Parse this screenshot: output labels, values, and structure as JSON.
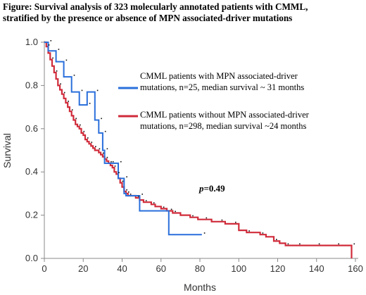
{
  "figure_title_line1": "Figure: Survival analysis of 323 molecularly annotated patients with CMML,",
  "figure_title_line2": "stratified by the presence or absence of MPN associated-driver mutations",
  "chart_data": {
    "type": "line",
    "title": "Figure: Survival analysis of 323 molecularly annotated patients with CMML, stratified by the presence or absence of MPN associated-driver mutations",
    "xlabel": "Months",
    "ylabel": "Survival",
    "xlim": [
      0,
      160
    ],
    "ylim": [
      0.0,
      1.0
    ],
    "x_ticks": [
      "0",
      "20",
      "40",
      "60",
      "80",
      "100",
      "120",
      "140",
      "160"
    ],
    "y_ticks": [
      "0.0",
      "0.2",
      "0.4",
      "0.6",
      "0.8",
      "1.0"
    ],
    "grid": false,
    "legend_position": "right",
    "annotation_italic": "p",
    "annotation_value": "=0.49",
    "series": [
      {
        "name_line1": "CMML patients with MPN associated-driver",
        "name_line2": "mutations, n=25,  median survival ~ 31 months",
        "color": "#2a6fdb",
        "x": [
          0,
          2,
          2,
          6,
          6,
          10,
          10,
          14,
          14,
          18,
          18,
          22,
          22,
          26,
          26,
          28,
          28,
          30,
          30,
          31,
          31,
          34,
          34,
          38,
          38,
          41,
          41,
          42,
          42,
          49,
          49,
          64,
          64,
          81
        ],
        "y": [
          1.0,
          1.0,
          0.96,
          0.96,
          0.91,
          0.91,
          0.84,
          0.84,
          0.77,
          0.77,
          0.71,
          0.71,
          0.77,
          0.77,
          0.64,
          0.64,
          0.58,
          0.58,
          0.5,
          0.5,
          0.44,
          0.44,
          0.44,
          0.44,
          0.37,
          0.37,
          0.3,
          0.3,
          0.29,
          0.29,
          0.22,
          0.22,
          0.11,
          0.11
        ]
      },
      {
        "name_line1": "CMML patients without MPN associated-driver",
        "name_line2": "mutations, n=298, median survival ~24 months",
        "color": "#d02b3a",
        "x": [
          0,
          1,
          2,
          3,
          4,
          5,
          6,
          7,
          8,
          9,
          10,
          11,
          12,
          13,
          14,
          15,
          16,
          17,
          18,
          19,
          20,
          21,
          22,
          23,
          24,
          25,
          26,
          27,
          28,
          29,
          30,
          31,
          32,
          33,
          34,
          35,
          36,
          37,
          38,
          39,
          40,
          41,
          42,
          43,
          45,
          47,
          49,
          51,
          53,
          55,
          57,
          60,
          63,
          66,
          70,
          75,
          79,
          82,
          86,
          90,
          93,
          97,
          100,
          104,
          108,
          111,
          114,
          118,
          121,
          124,
          127,
          130,
          135,
          140,
          145,
          150,
          155,
          158,
          158
        ],
        "y": [
          1.0,
          0.98,
          0.95,
          0.92,
          0.89,
          0.86,
          0.83,
          0.8,
          0.78,
          0.76,
          0.74,
          0.72,
          0.7,
          0.68,
          0.66,
          0.64,
          0.62,
          0.61,
          0.6,
          0.58,
          0.57,
          0.55,
          0.54,
          0.53,
          0.52,
          0.51,
          0.5,
          0.5,
          0.49,
          0.48,
          0.47,
          0.46,
          0.45,
          0.44,
          0.43,
          0.42,
          0.4,
          0.39,
          0.37,
          0.35,
          0.33,
          0.31,
          0.3,
          0.29,
          0.29,
          0.28,
          0.27,
          0.26,
          0.26,
          0.25,
          0.24,
          0.23,
          0.22,
          0.21,
          0.2,
          0.19,
          0.18,
          0.18,
          0.17,
          0.17,
          0.16,
          0.16,
          0.13,
          0.12,
          0.12,
          0.11,
          0.1,
          0.08,
          0.07,
          0.06,
          0.06,
          0.06,
          0.06,
          0.06,
          0.06,
          0.06,
          0.06,
          0.06,
          0.0
        ]
      }
    ]
  }
}
